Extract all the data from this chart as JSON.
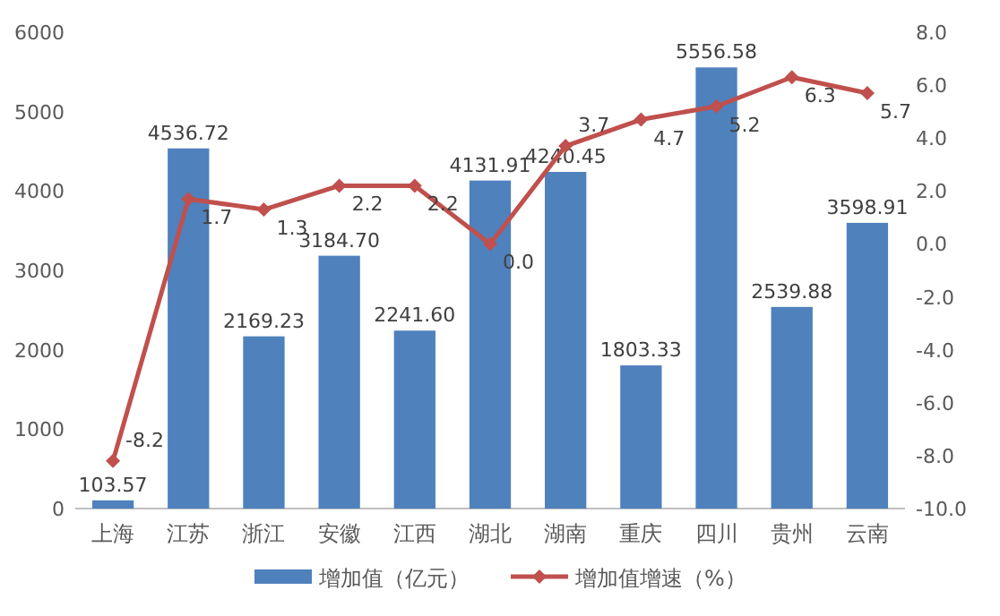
{
  "chart_data": {
    "type": "bar",
    "categories": [
      "上海",
      "江苏",
      "浙江",
      "安徽",
      "江西",
      "湖北",
      "湖南",
      "重庆",
      "四川",
      "贵州",
      "云南"
    ],
    "series": [
      {
        "name": "增加值（亿元）",
        "color": "#4f81bd",
        "values": [
          103.57,
          4536.72,
          2169.23,
          3184.7,
          2241.6,
          4131.91,
          4240.45,
          1803.33,
          5556.58,
          2539.88,
          3598.91
        ],
        "value_labels": [
          "103.57",
          "4536.72",
          "2169.23",
          "3184.70",
          "2241.60",
          "4131.91",
          "4240.45",
          "1803.33",
          "5556.58",
          "2539.88",
          "3598.91"
        ]
      },
      {
        "name": "增加值增速（%）",
        "type": "line",
        "axis": "y2",
        "color": "#c0504d",
        "marker": "diamond",
        "values": [
          -8.2,
          1.7,
          1.3,
          2.2,
          2.2,
          0.0,
          3.7,
          4.7,
          5.2,
          6.3,
          5.7
        ],
        "value_labels": [
          "-8.2",
          "1.7",
          "1.3",
          "2.2",
          "2.2",
          "0.0",
          "3.7",
          "4.7",
          "5.2",
          "6.3",
          "5.7"
        ]
      }
    ],
    "ylim": [
      0,
      6000
    ],
    "yticks": [
      0,
      1000,
      2000,
      3000,
      4000,
      5000,
      6000
    ],
    "y2lim": [
      -10,
      8
    ],
    "y2ticks": [
      {
        "value": -10,
        "label": "-10.0"
      },
      {
        "value": -8,
        "label": "-8.0"
      },
      {
        "value": -6,
        "label": "-6.0"
      },
      {
        "value": -4,
        "label": "-4.0"
      },
      {
        "value": -2,
        "label": "-2.0"
      },
      {
        "value": 0,
        "label": "0.0"
      },
      {
        "value": 2,
        "label": "2.0"
      },
      {
        "value": 4,
        "label": "4.0"
      },
      {
        "value": 6,
        "label": "6.0"
      },
      {
        "value": 8,
        "label": "8.0"
      }
    ],
    "legend": "bottom",
    "grid": false
  }
}
